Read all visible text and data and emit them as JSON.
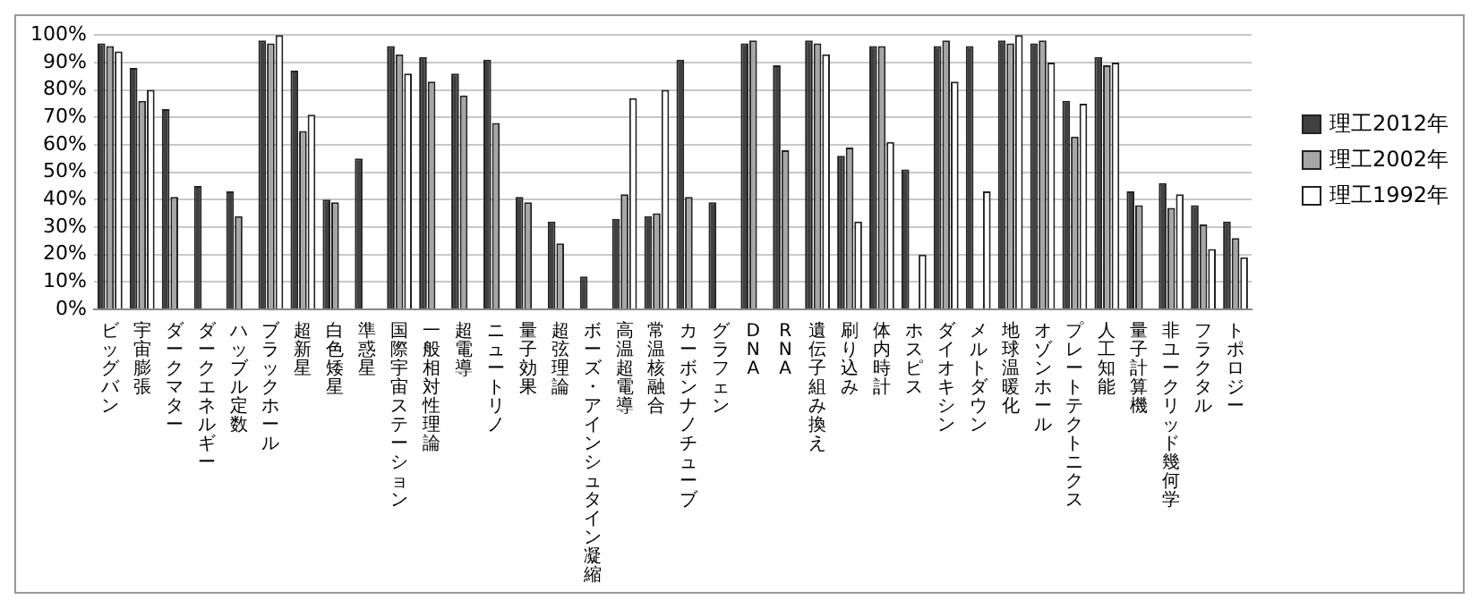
{
  "chart_data": {
    "type": "bar",
    "categories": [
      "ビッグバン",
      "宇宙膨張",
      "ダークマター",
      "ダークエネルギー",
      "ハッブル定数",
      "ブラックホール",
      "超新星",
      "白色矮星",
      "準惑星",
      "国際宇宙ステーション",
      "一般相対性理論",
      "超電導",
      "ニュートリノ",
      "量子効果",
      "超弦理論",
      "ボーズ・アインシュタイン凝縮",
      "高温超電導",
      "常温核融合",
      "カーボンナノチューブ",
      "グラフェン",
      "DNA",
      "RNA",
      "遺伝子組み換え",
      "刷り込み",
      "体内時計",
      "ホスピス",
      "ダイオキシン",
      "メルトダウン",
      "地球温暖化",
      "オゾンホール",
      "プレートテクトニクス",
      "人工知能",
      "量子計算機",
      "非ユークリッド幾何学",
      "フラクタル",
      "トポロジー"
    ],
    "series": [
      {
        "name": "理工2012年",
        "color": "#404040",
        "values": [
          97,
          88,
          73,
          45,
          43,
          98,
          87,
          40,
          55,
          96,
          92,
          86,
          91,
          41,
          32,
          12,
          33,
          34,
          91,
          39,
          97,
          89,
          98,
          56,
          96,
          51,
          96,
          96,
          98,
          97,
          76,
          92,
          43,
          46,
          38,
          32
        ]
      },
      {
        "name": "理工2002年",
        "color": "#a6a6a6",
        "values": [
          96,
          76,
          41,
          null,
          34,
          97,
          65,
          39,
          null,
          93,
          83,
          78,
          68,
          39,
          24,
          null,
          42,
          35,
          41,
          null,
          98,
          58,
          97,
          59,
          96,
          null,
          98,
          null,
          97,
          98,
          63,
          89,
          38,
          37,
          31,
          26
        ]
      },
      {
        "name": "理工1992年",
        "color": "#ffffff",
        "values": [
          94,
          80,
          null,
          null,
          null,
          100,
          71,
          null,
          null,
          86,
          null,
          null,
          null,
          null,
          null,
          null,
          77,
          80,
          null,
          null,
          null,
          null,
          93,
          32,
          61,
          20,
          83,
          43,
          100,
          90,
          75,
          90,
          null,
          42,
          22,
          19
        ]
      }
    ],
    "ylim": [
      0,
      100
    ],
    "yticks": [
      {
        "value": 0,
        "label": "0%"
      },
      {
        "value": 10,
        "label": "10%"
      },
      {
        "value": 20,
        "label": "20%"
      },
      {
        "value": 30,
        "label": "30%"
      },
      {
        "value": 40,
        "label": "40%"
      },
      {
        "value": 50,
        "label": "50%"
      },
      {
        "value": 60,
        "label": "60%"
      },
      {
        "value": 70,
        "label": "70%"
      },
      {
        "value": 80,
        "label": "80%"
      },
      {
        "value": 90,
        "label": "90%"
      },
      {
        "value": 100,
        "label": "100%"
      }
    ],
    "grid": "y",
    "legend": "right"
  }
}
